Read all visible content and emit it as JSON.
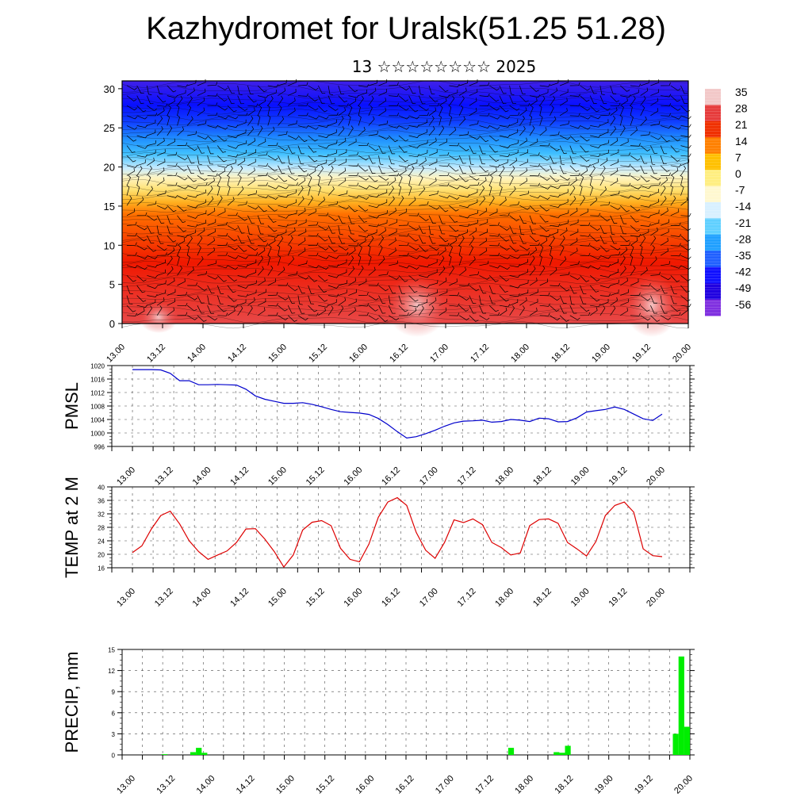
{
  "header": {
    "title": "Kazhydromet for Uralsk(51.25 51.28)",
    "subtitle": "13 ☆☆☆☆☆☆☆☆ 2025"
  },
  "colors": {
    "pmsl_line": "#0000cc",
    "temp_line": "#dd0000",
    "precip_bar": "#00ee00",
    "wind_barb": "#000000"
  },
  "chart_data": [
    {
      "id": "cross_section",
      "type": "heatmap",
      "description_kind": "height-time temperature cross-section with wind barbs",
      "x_tick_labels": [
        "13.00",
        "13.12",
        "14.00",
        "14.12",
        "15.00",
        "15.12",
        "16.00",
        "16.12",
        "17.00",
        "17.12",
        "18.00",
        "18.12",
        "19.00",
        "19.12",
        "20.00"
      ],
      "ylim": [
        0,
        31
      ],
      "y_ticks": [
        0,
        5,
        10,
        15,
        20,
        25,
        30
      ],
      "colorbar_labels": [
        "35",
        "28",
        "21",
        "14",
        "7",
        "0",
        "-7",
        "-14",
        "-21",
        "-28",
        "-35",
        "-42",
        "-49",
        "-56"
      ],
      "colorbar_stops": [
        "#f2c8c8",
        "#e63c3c",
        "#f03000",
        "#ff8000",
        "#ffc000",
        "#ffee80",
        "#fff8d0",
        "#d8f0ff",
        "#60d0ff",
        "#20a0ff",
        "#2060ff",
        "#1010ff",
        "#2000e0",
        "#8030e0"
      ]
    },
    {
      "id": "pmsl",
      "type": "line",
      "ylabel": "PMSL",
      "ylim": [
        996,
        1020
      ],
      "y_ticks": [
        996,
        1000,
        1004,
        1008,
        1012,
        1016,
        1020
      ],
      "x_tick_labels": [
        "13.00",
        "13.12",
        "14.00",
        "14.12",
        "15.00",
        "15.12",
        "16.00",
        "16.12",
        "17.00",
        "17.12",
        "18.00",
        "18.12",
        "19.00",
        "19.12",
        "20.00"
      ],
      "x": [
        0,
        3,
        6,
        9,
        12,
        15,
        18,
        21,
        24,
        27,
        30,
        33,
        36,
        39,
        42,
        45,
        48,
        51,
        54,
        57,
        60,
        63,
        66,
        69,
        72,
        75,
        78,
        81,
        84,
        87,
        90,
        93,
        96,
        99,
        102,
        105,
        108,
        111,
        114,
        117,
        120,
        123,
        126,
        129,
        132,
        135,
        138,
        141,
        144,
        147,
        150,
        153,
        156,
        159,
        162,
        165,
        168
      ],
      "values": [
        1018.8,
        1018.8,
        1018.8,
        1018.7,
        1017.7,
        1015.5,
        1015.5,
        1014.3,
        1014.3,
        1014.4,
        1014.3,
        1014.2,
        1013.0,
        1011.0,
        1010.0,
        1009.4,
        1008.8,
        1008.8,
        1009.0,
        1008.5,
        1007.8,
        1007.0,
        1006.3,
        1006.1,
        1005.9,
        1005.5,
        1004.3,
        1002.5,
        1000.4,
        998.5,
        998.9,
        999.8,
        1000.8,
        1002.0,
        1003.0,
        1003.5,
        1003.6,
        1003.8,
        1003.2,
        1003.4,
        1004.0,
        1003.8,
        1003.4,
        1004.4,
        1004.2,
        1003.3,
        1003.4,
        1004.5,
        1006.2,
        1006.6,
        1007.0,
        1007.7,
        1007.0,
        1005.6,
        1004.2,
        1003.7,
        1005.6
      ]
    },
    {
      "id": "temp",
      "type": "line",
      "ylabel": "TEMP at 2 M",
      "ylim": [
        16,
        40
      ],
      "y_ticks": [
        16,
        20,
        24,
        28,
        32,
        36,
        40
      ],
      "x_tick_labels": [
        "13.00",
        "13.12",
        "14.00",
        "14.12",
        "15.00",
        "15.12",
        "16.00",
        "16.12",
        "17.00",
        "17.12",
        "18.00",
        "18.12",
        "19.00",
        "19.12",
        "20.00"
      ],
      "x": [
        0,
        3,
        6,
        9,
        12,
        15,
        18,
        21,
        24,
        27,
        30,
        33,
        36,
        39,
        42,
        45,
        48,
        51,
        54,
        57,
        60,
        63,
        66,
        69,
        72,
        75,
        78,
        81,
        84,
        87,
        90,
        93,
        96,
        99,
        102,
        105,
        108,
        111,
        114,
        117,
        120,
        123,
        126,
        129,
        132,
        135,
        138,
        141,
        144,
        147,
        150,
        153,
        156,
        159,
        162,
        165,
        168
      ],
      "values": [
        20.5,
        22.5,
        27.5,
        31.5,
        32.8,
        29.0,
        24.0,
        20.8,
        18.5,
        19.8,
        21.0,
        23.5,
        27.5,
        27.6,
        24.5,
        20.8,
        16.2,
        19.8,
        27.2,
        29.5,
        30.0,
        28.5,
        21.8,
        18.5,
        17.8,
        23.0,
        31.0,
        35.5,
        36.8,
        34.5,
        26.5,
        21.2,
        18.8,
        23.5,
        30.2,
        29.4,
        30.5,
        28.8,
        23.5,
        22.0,
        19.8,
        20.4,
        28.5,
        30.3,
        30.5,
        29.2,
        23.5,
        21.6,
        19.5,
        23.8,
        31.5,
        34.5,
        35.5,
        32.5,
        21.6,
        19.6,
        19.3
      ]
    },
    {
      "id": "precip",
      "type": "bar",
      "ylabel": "PRECIP, mm",
      "ylim": [
        0,
        15
      ],
      "y_ticks": [
        0,
        3,
        6,
        9,
        12,
        15
      ],
      "x_tick_labels": [
        "13.00",
        "13.12",
        "14.00",
        "14.12",
        "15.00",
        "15.12",
        "16.00",
        "16.12",
        "17.00",
        "17.12",
        "18.00",
        "18.12",
        "19.00",
        "19.12",
        "20.00"
      ],
      "bins_per_tick": 4,
      "values": [
        0,
        0,
        0,
        0,
        0,
        0,
        0,
        0.1,
        0,
        0,
        0,
        0,
        0.4,
        1.0,
        0.3,
        0,
        0,
        0,
        0,
        0,
        0,
        0,
        0,
        0,
        0,
        0,
        0,
        0,
        0,
        0,
        0,
        0,
        0,
        0,
        0,
        0,
        0,
        0,
        0,
        0,
        0,
        0,
        0,
        0,
        0,
        0,
        0,
        0,
        0,
        0,
        0,
        0,
        0,
        0,
        0,
        0,
        0,
        0,
        0,
        0,
        0,
        0,
        0,
        0,
        0,
        0,
        0,
        0,
        1.0,
        0,
        0,
        0,
        0,
        0,
        0,
        0,
        0.4,
        0.3,
        1.3,
        0,
        0,
        0,
        0,
        0,
        0,
        0,
        0,
        0,
        0,
        0,
        0,
        0,
        0,
        0,
        0,
        0,
        0,
        3.0,
        14.0,
        4.0
      ]
    }
  ]
}
